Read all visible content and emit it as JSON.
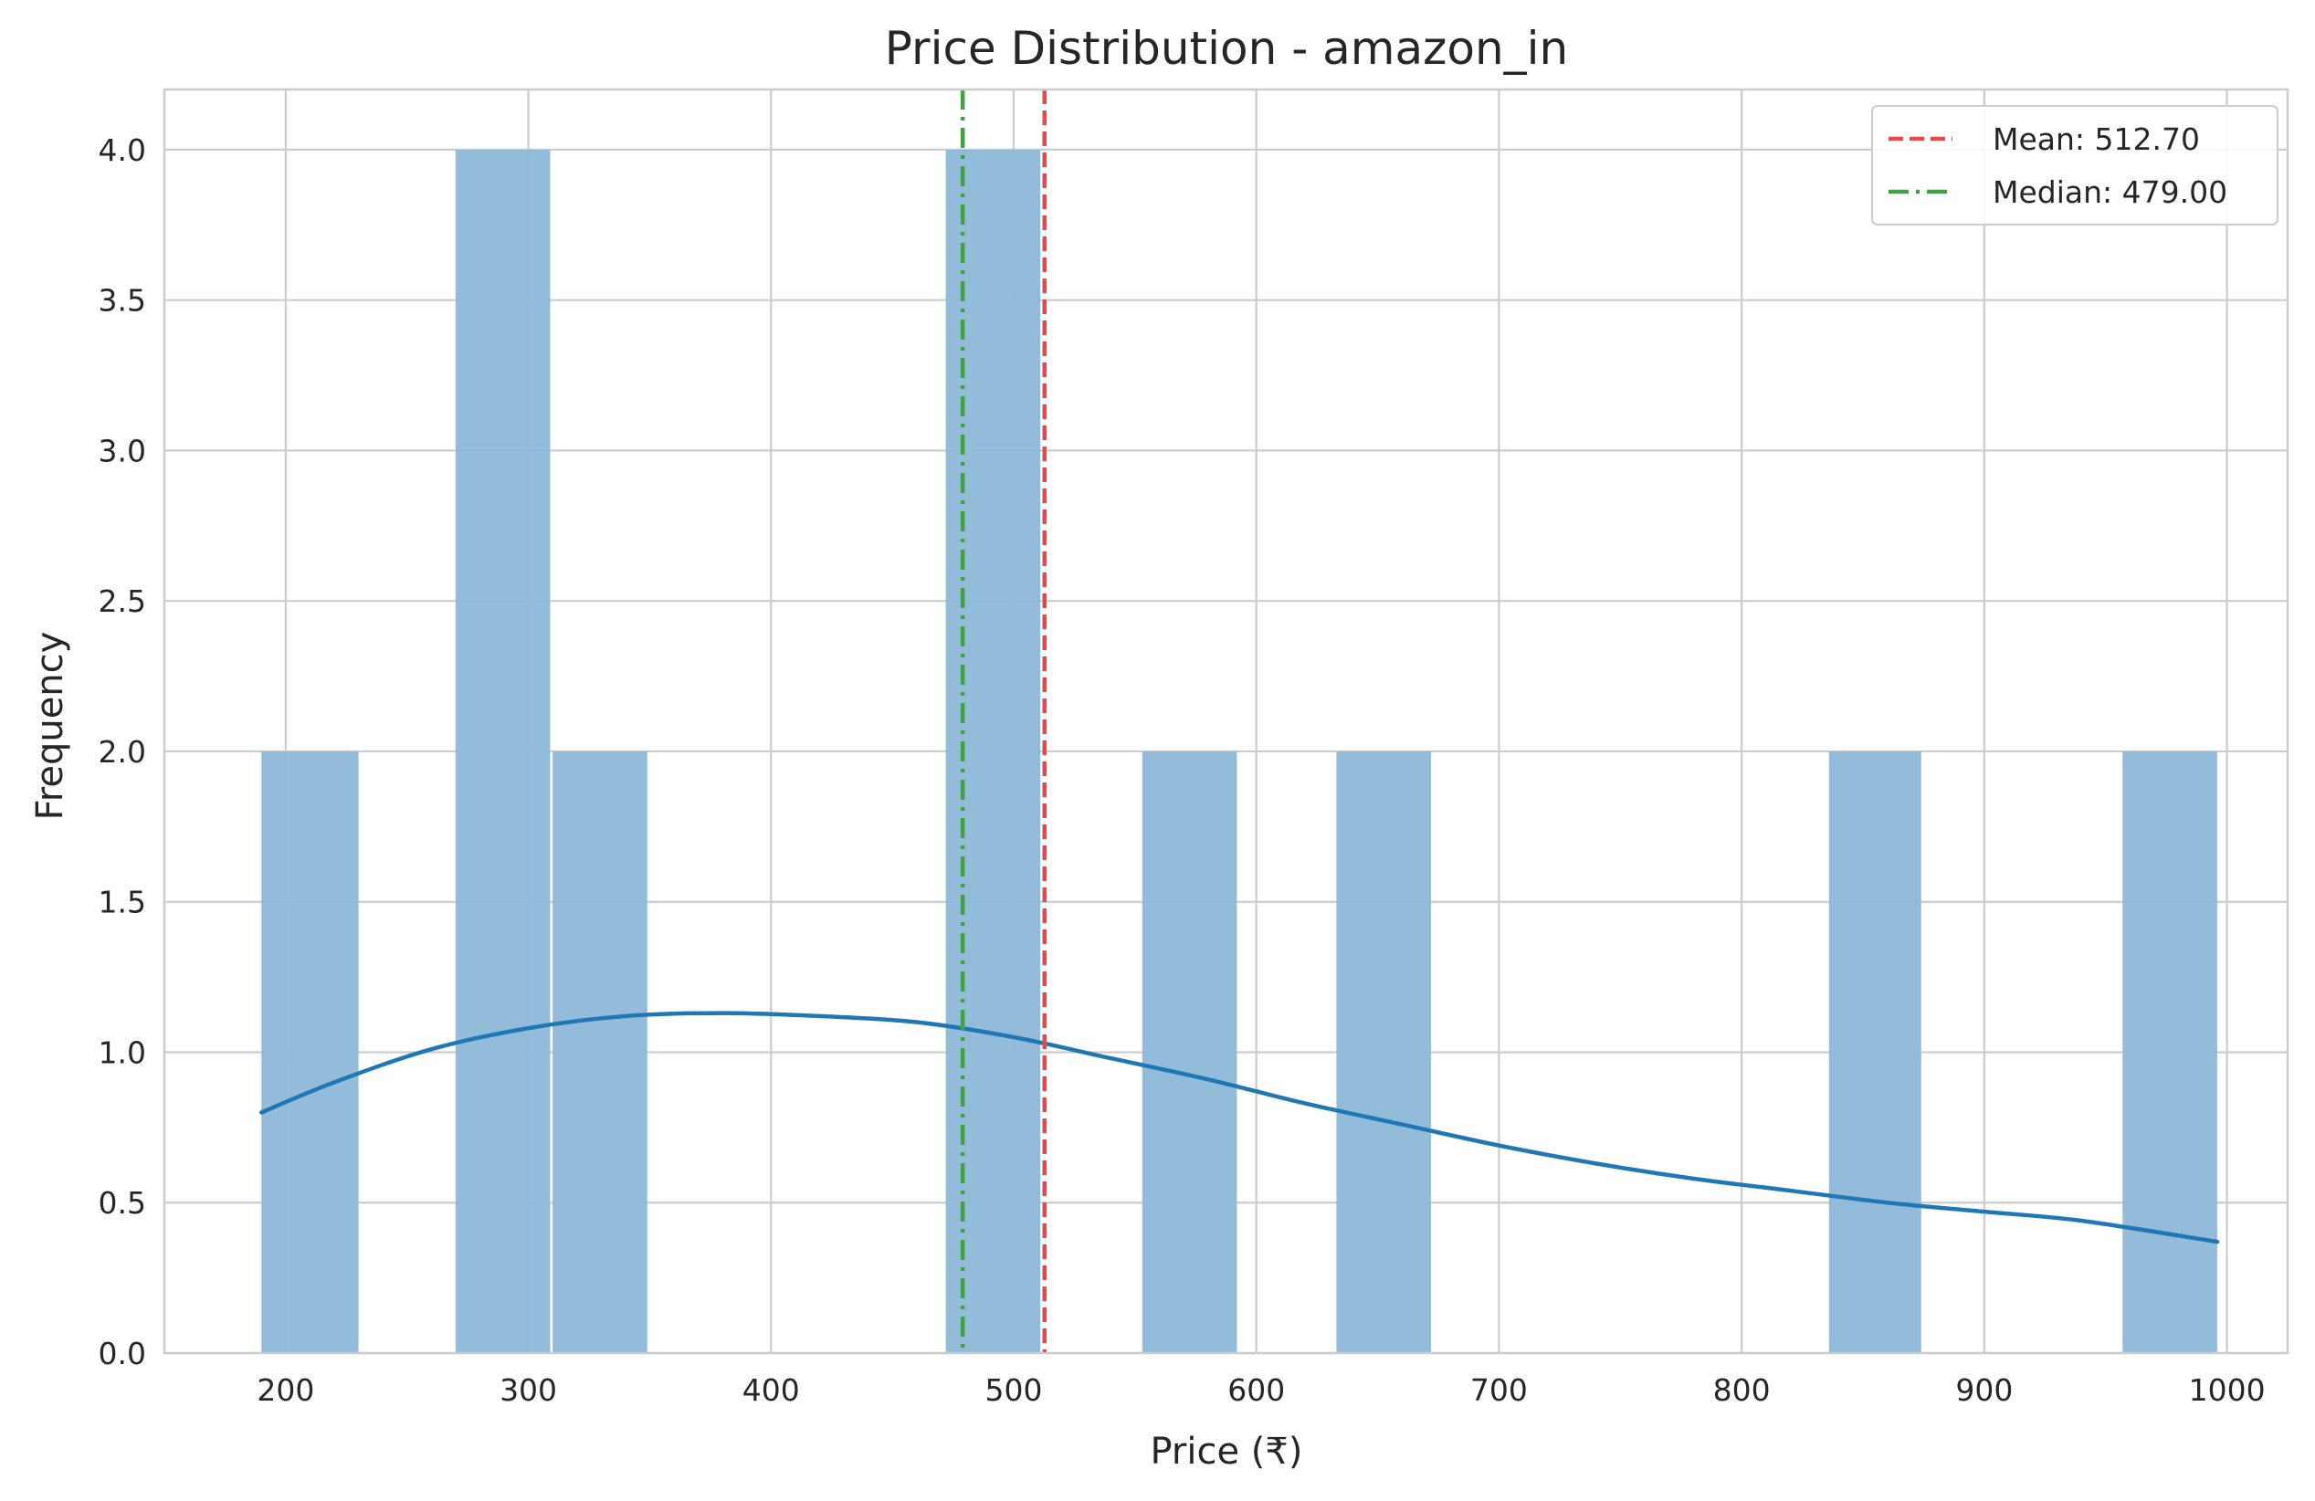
{
  "chart_data": {
    "type": "bar",
    "title": "Price Distribution - amazon_in",
    "xlabel": "Price (₹)",
    "ylabel": "Frequency",
    "xlim": [
      150,
      1025
    ],
    "ylim": [
      0,
      4.2
    ],
    "x_ticks": [
      200,
      300,
      400,
      500,
      600,
      700,
      800,
      900,
      1000
    ],
    "y_ticks": [
      0.0,
      0.5,
      1.0,
      1.5,
      2.0,
      2.5,
      3.0,
      3.5,
      4.0
    ],
    "y_tick_labels": [
      "0.0",
      "0.5",
      "1.0",
      "1.5",
      "2.0",
      "2.5",
      "3.0",
      "3.5",
      "4.0"
    ],
    "grid": true,
    "legend_position": "top-right",
    "colors": {
      "bars": "#8cb8d8",
      "kde": "#1f77b4",
      "mean": "#e8474b",
      "median": "#43a047",
      "grid": "#cccccc",
      "spine": "#cccccc"
    },
    "bins": [
      {
        "x0": 190,
        "x1": 230,
        "count": 2
      },
      {
        "x0": 270,
        "x1": 309,
        "count": 4
      },
      {
        "x0": 310,
        "x1": 349,
        "count": 2
      },
      {
        "x0": 472,
        "x1": 511,
        "count": 4
      },
      {
        "x0": 553,
        "x1": 592,
        "count": 2
      },
      {
        "x0": 633,
        "x1": 672,
        "count": 2
      },
      {
        "x0": 836,
        "x1": 874,
        "count": 2
      },
      {
        "x0": 957,
        "x1": 996,
        "count": 2
      }
    ],
    "kde": {
      "x": [
        190,
        220,
        260,
        300,
        340,
        380,
        420,
        460,
        500,
        540,
        580,
        620,
        660,
        700,
        740,
        780,
        820,
        860,
        900,
        940,
        996
      ],
      "y": [
        0.8,
        0.9,
        1.01,
        1.08,
        1.12,
        1.13,
        1.12,
        1.1,
        1.05,
        0.98,
        0.91,
        0.83,
        0.76,
        0.69,
        0.63,
        0.58,
        0.54,
        0.5,
        0.47,
        0.44,
        0.37
      ]
    },
    "reference_lines": [
      {
        "name": "Mean: 512.70",
        "value": 512.7,
        "style": "dashed",
        "color": "#e8474b"
      },
      {
        "name": "Median: 479.00",
        "value": 479.0,
        "style": "dashdot",
        "color": "#43a047"
      }
    ]
  }
}
